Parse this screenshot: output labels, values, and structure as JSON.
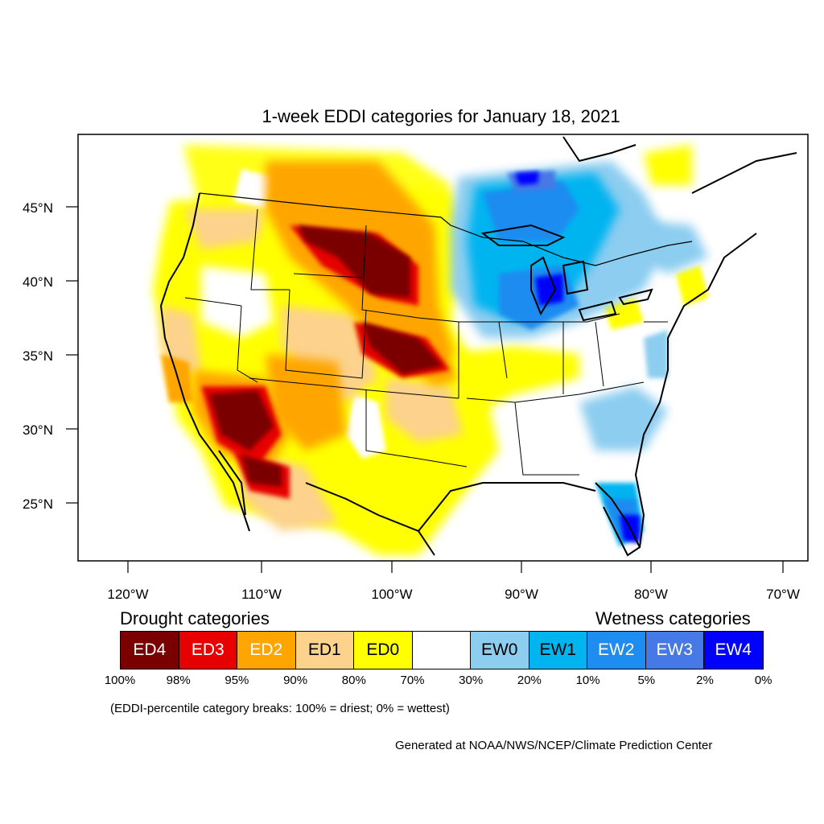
{
  "title": "1-week EDDI categories for January 18, 2021",
  "axes": {
    "lat_labels": [
      "45°N",
      "40°N",
      "35°N",
      "30°N",
      "25°N"
    ],
    "lon_labels": [
      "120°W",
      "110°W",
      "100°W",
      "90°W",
      "80°W",
      "70°W"
    ]
  },
  "legend": {
    "drought_heading": "Drought categories",
    "wetness_heading": "Wetness categories",
    "categories": [
      {
        "label": "ED4",
        "color": "#7a0000",
        "text_color": "#ffffff"
      },
      {
        "label": "ED3",
        "color": "#e60000",
        "text_color": "#ffffff"
      },
      {
        "label": "ED2",
        "color": "#ffa500",
        "text_color": "#ffffff"
      },
      {
        "label": "ED1",
        "color": "#fcd28c",
        "text_color": "#000000"
      },
      {
        "label": "ED0",
        "color": "#ffff00",
        "text_color": "#000000"
      },
      {
        "label": "",
        "color": "#ffffff",
        "text_color": "#000000"
      },
      {
        "label": "EW0",
        "color": "#8ccdf0",
        "text_color": "#000000"
      },
      {
        "label": "EW1",
        "color": "#00b4f0",
        "text_color": "#000000"
      },
      {
        "label": "EW2",
        "color": "#1e8cf0",
        "text_color": "#ffffff"
      },
      {
        "label": "EW3",
        "color": "#4678e6",
        "text_color": "#ffffff"
      },
      {
        "label": "EW4",
        "color": "#0000ff",
        "text_color": "#ffffff"
      }
    ],
    "percentiles": [
      "100%",
      "98%",
      "95%",
      "90%",
      "80%",
      "70%",
      "30%",
      "20%",
      "10%",
      "5%",
      "2%",
      "0%"
    ]
  },
  "note": "(EDDI-percentile category breaks: 100% = driest; 0% = wettest)",
  "credit": "Generated at NOAA/NWS/NCEP/Climate Prediction Center"
}
